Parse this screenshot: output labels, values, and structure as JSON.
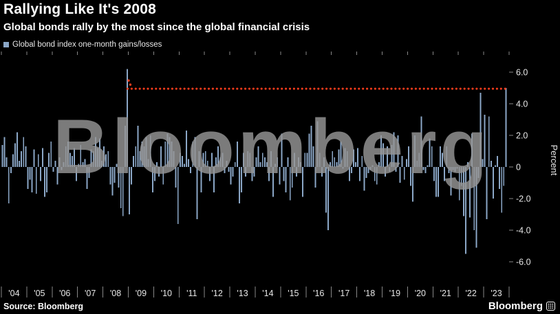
{
  "header": {
    "title": "Rallying Like It's 2008",
    "subtitle": "Global bonds rally by the most since the global financial crisis"
  },
  "legend": {
    "label": "Global bond index one-month gains/losses"
  },
  "watermark": "Bloomberg",
  "footer": {
    "source": "Source: Bloomberg",
    "brand": "Bloomberg"
  },
  "colors": {
    "background": "#000000",
    "bar": "#8BA7C7",
    "reference_line": "#FF3D1C",
    "watermark": "#969696",
    "axis_text": "#E8E8E8",
    "tick": "#888888"
  },
  "chart_data": {
    "type": "bar",
    "title": "Rallying Like It's 2008",
    "subtitle": "Global bonds rally by the most since the global financial crisis",
    "series_name": "Global bond index one-month gains/losses",
    "ylabel": "Percent",
    "ylim": [
      -7.5,
      7.5
    ],
    "grid": false,
    "legend_position": "top-left",
    "yticks": [
      "6.0",
      "4.0",
      "2.0",
      "0",
      "-2.0",
      "-4.0",
      "-6.0"
    ],
    "ytick_values": [
      6,
      4,
      2,
      0,
      -2,
      -4,
      -6
    ],
    "year_labels": [
      "'04",
      "'05",
      "'06",
      "'07",
      "'08",
      "'09",
      "'10",
      "'11",
      "'12",
      "'13",
      "'14",
      "'15",
      "'16",
      "'17",
      "'18",
      "'19",
      "'20",
      "'21",
      "'22",
      "'23"
    ],
    "frequency": "monthly",
    "start_month": "2004-01",
    "end_month": "2023-11",
    "bar_color": "#8BA7C7",
    "reference_line": {
      "value": 4.95,
      "color": "#FF3D1C",
      "style": "dotted",
      "start_index": 59
    },
    "values": [
      1.4,
      1.9,
      0.6,
      -2.3,
      -0.4,
      0.8,
      1.5,
      2.2,
      0.4,
      1.0,
      1.9,
      1.3,
      -1.4,
      -0.8,
      -1.6,
      1.1,
      -1.7,
      0.8,
      -0.9,
      1.2,
      -1.9,
      -1.6,
      0.9,
      1.6,
      -0.3,
      0.4,
      -1.1,
      0.6,
      -0.2,
      0.3,
      1.3,
      1.6,
      0.9,
      0.7,
      1.2,
      -0.9,
      0.2,
      1.4,
      0.3,
      0.5,
      -1.4,
      -0.7,
      1.1,
      1.0,
      1.9,
      1.2,
      1.8,
      0.4,
      1.3,
      0.8,
      1.0,
      -1.1,
      -1.8,
      -1.0,
      0.2,
      -1.3,
      -2.6,
      -3.1,
      2.6,
      6.2,
      -3.0,
      -1.1,
      0.7,
      1.3,
      2.6,
      1.0,
      1.6,
      1.3,
      1.9,
      0.5,
      2.0,
      -1.6,
      -0.9,
      0.3,
      -0.6,
      1.3,
      -1.1,
      1.6,
      2.1,
      1.9,
      1.6,
      1.0,
      -1.3,
      -3.6,
      0.9,
      0.7,
      0.2,
      2.3,
      0.5,
      -0.4,
      1.6,
      1.9,
      -3.3,
      1.0,
      -1.6,
      0.9,
      1.0,
      0.4,
      -0.9,
      0.9,
      -1.6,
      0.6,
      1.3,
      0.6,
      0.9,
      -0.4,
      0.4,
      -0.3,
      -1.1,
      -0.6,
      0.3,
      1.6,
      -2.3,
      -1.6,
      0.9,
      -0.6,
      1.0,
      0.9,
      -0.9,
      -0.6,
      0.6,
      1.3,
      0.3,
      0.9,
      0.6,
      0.3,
      -0.9,
      1.0,
      -1.9,
      0.2,
      0.6,
      -1.1,
      2.1,
      -0.9,
      -1.6,
      0.6,
      -2.1,
      -1.3,
      0.9,
      -0.6,
      0.6,
      0.3,
      -1.9,
      0.9,
      0.9,
      2.1,
      2.6,
      1.3,
      -1.3,
      2.9,
      0.9,
      -0.6,
      0.6,
      -2.9,
      -4.0,
      0.3,
      1.0,
      0.6,
      0.3,
      1.1,
      1.6,
      -0.1,
      1.2,
      1.0,
      -0.9,
      -0.4,
      1.1,
      0.3,
      1.2,
      -0.9,
      0.7,
      -1.5,
      -0.7,
      -0.4,
      -0.2,
      0.1,
      -0.9,
      -1.1,
      0.3,
      2.0,
      1.5,
      -0.6,
      1.3,
      -0.3,
      1.4,
      2.2,
      -0.3,
      2.0,
      -1.0,
      0.7,
      -0.8,
      0.5,
      1.3,
      -1.2,
      -2.2,
      2.0,
      0.4,
      0.9,
      3.2,
      -0.2,
      -0.4,
      0.1,
      1.8,
      1.3,
      -0.9,
      -1.9,
      -1.9,
      1.3,
      0.9,
      -0.9,
      1.3,
      -0.4,
      -1.8,
      -0.2,
      -0.3,
      -0.1,
      -2.1,
      -1.2,
      -3.1,
      -5.5,
      0.3,
      -3.2,
      2.1,
      -4.0,
      -5.1,
      -0.7,
      4.7,
      0.5,
      3.3,
      -3.3,
      3.2,
      0.4,
      -2.0,
      0.1,
      0.7,
      -1.4,
      -2.9,
      -1.2,
      5.0
    ]
  }
}
